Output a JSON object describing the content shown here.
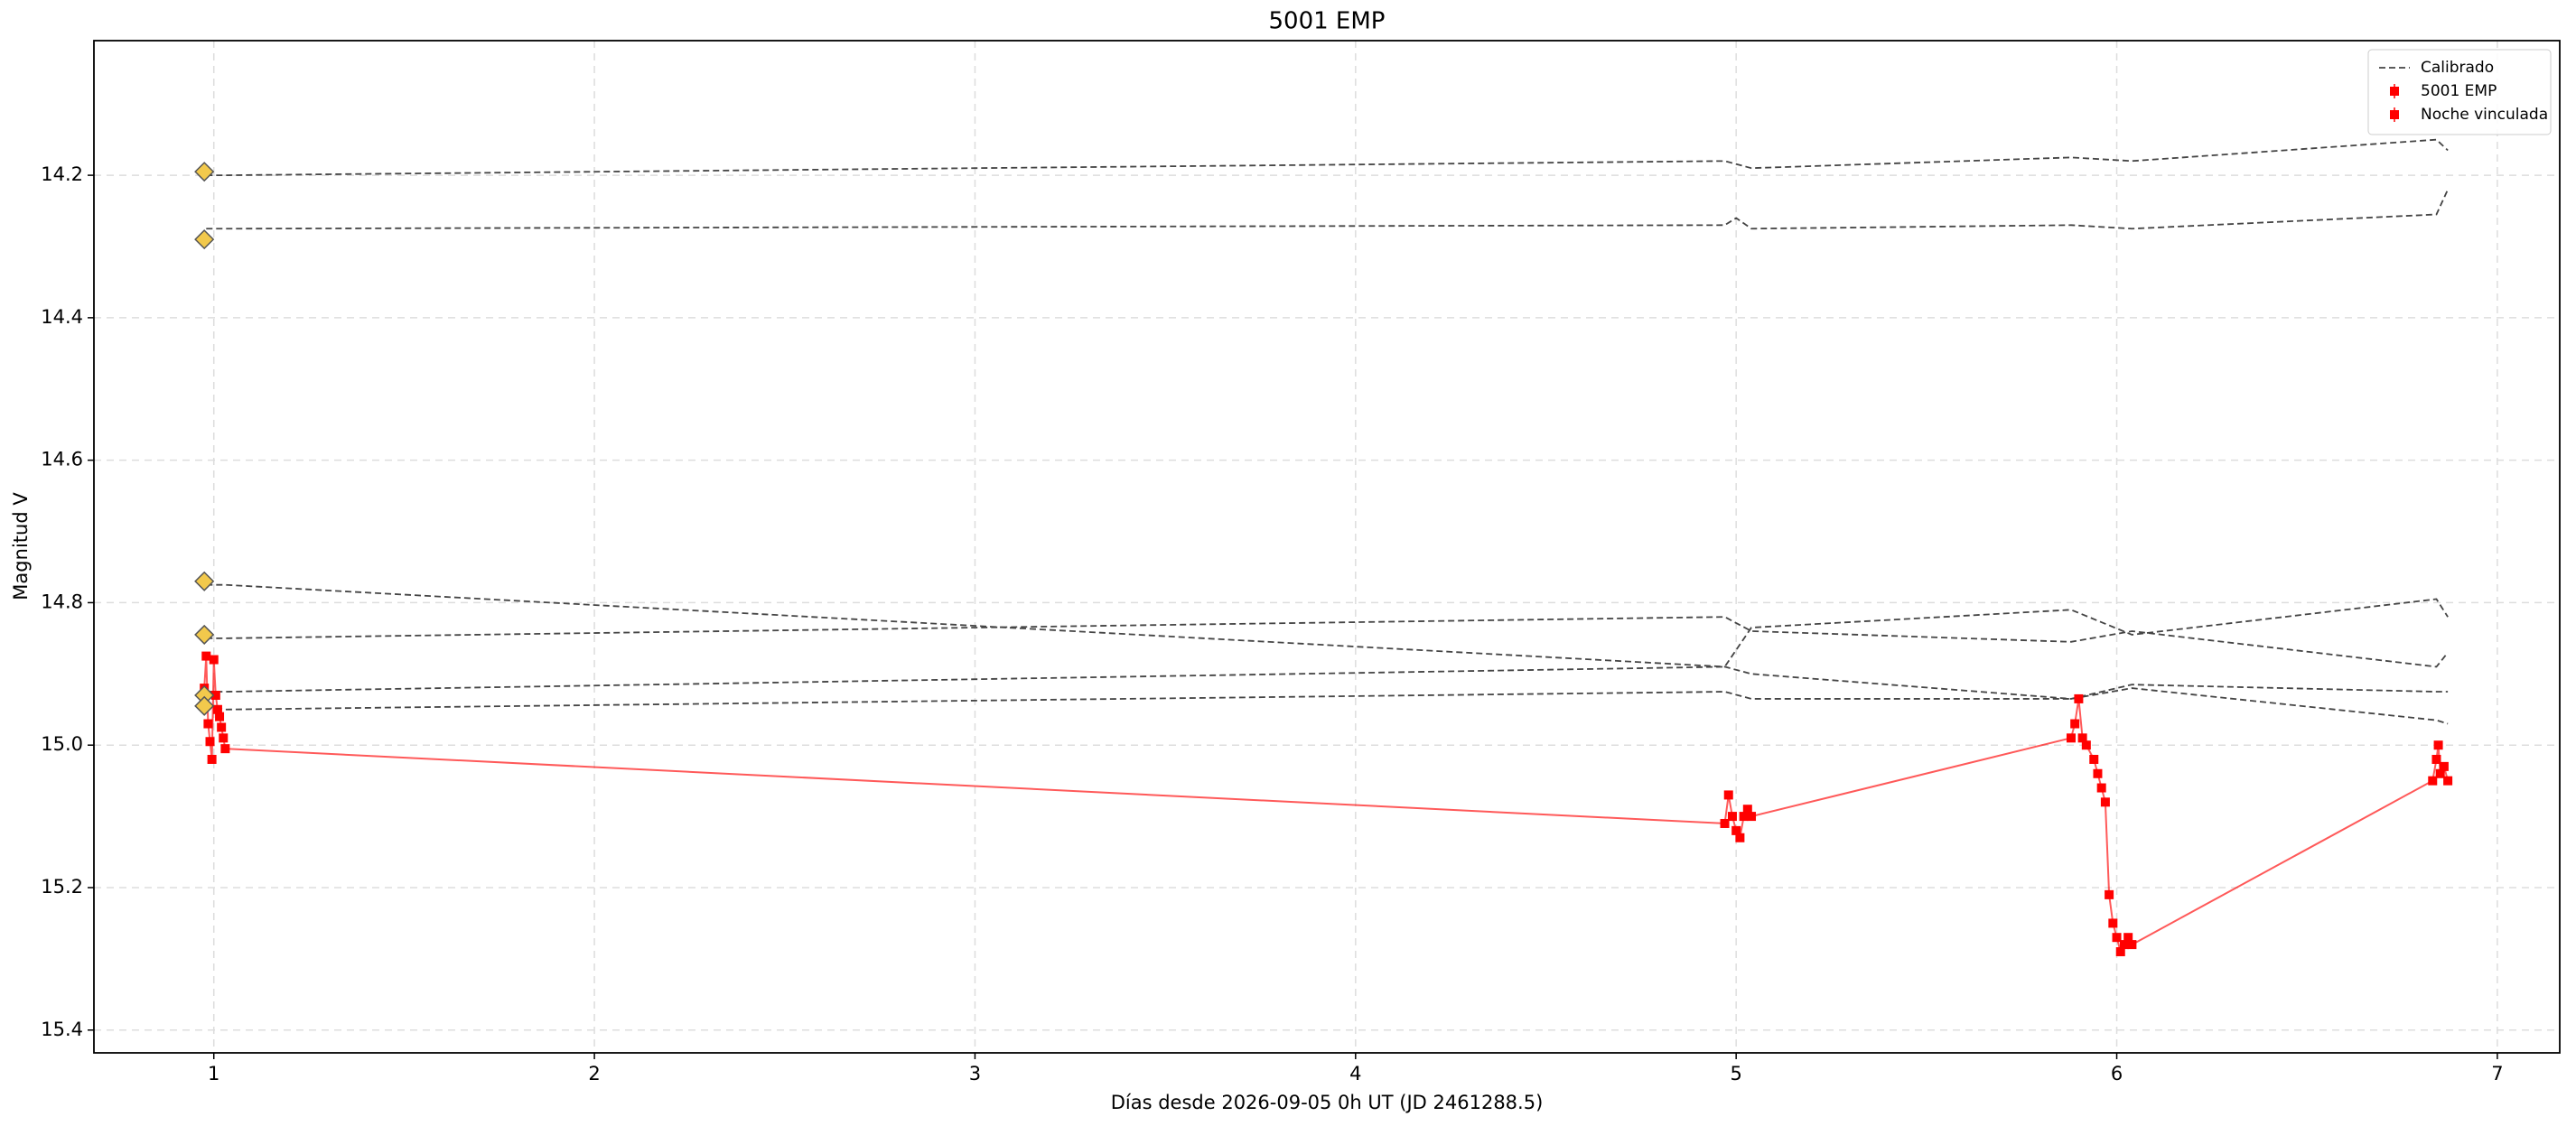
{
  "chart_data": {
    "type": "line",
    "title": "5001 EMP",
    "x_label": "Días desde 2026-09-05 0h UT (JD 2461288.5)",
    "y_label": "Magnitud V",
    "xlim": [
      0.685,
      7.164
    ],
    "ylim": [
      15.432,
      14.011
    ],
    "xticks": [
      1,
      2,
      3,
      4,
      5,
      6,
      7
    ],
    "yticks": [
      14.2,
      14.4,
      14.6,
      14.8,
      {
        "value": 15,
        "label": "15.0"
      },
      15.2,
      15.4
    ],
    "grid": true,
    "legend": "upper right",
    "connect_points": true,
    "series": [
      {
        "name": "Calibrado",
        "color": "#444444",
        "style": "dashed",
        "lines": [
          {
            "x": [
              0.98,
              1.03,
              4.97,
              5.04,
              5.88,
              6.04,
              6.84,
              6.87
            ],
            "values": [
              14.2,
              14.2,
              14.18,
              14.19,
              14.175,
              14.18,
              14.15,
              14.165
            ]
          },
          {
            "x": [
              0.98,
              1.03,
              4.97,
              5.0,
              5.04,
              5.88,
              6.04,
              6.84,
              6.87
            ],
            "values": [
              14.275,
              14.275,
              14.27,
              14.26,
              14.275,
              14.27,
              14.275,
              14.255,
              14.22
            ]
          },
          {
            "x": [
              0.98,
              1.03,
              4.97,
              5.04,
              5.88,
              6.04,
              6.84,
              6.87
            ],
            "values": [
              14.775,
              14.775,
              14.89,
              14.9,
              14.935,
              14.915,
              14.925,
              14.925
            ]
          },
          {
            "x": [
              0.98,
              1.03,
              4.97,
              5.04,
              5.88,
              6.04,
              6.84,
              6.87
            ],
            "values": [
              14.85,
              14.85,
              14.82,
              14.84,
              14.855,
              14.84,
              14.89,
              14.87
            ]
          },
          {
            "x": [
              0.98,
              1.03,
              4.97,
              5.04,
              5.88,
              6.04,
              6.84,
              6.87
            ],
            "values": [
              14.925,
              14.925,
              14.89,
              14.835,
              14.81,
              14.845,
              14.795,
              14.82
            ]
          },
          {
            "x": [
              0.98,
              1.03,
              4.97,
              5.04,
              5.88,
              6.04,
              6.84,
              6.87
            ],
            "values": [
              14.945,
              14.95,
              14.925,
              14.935,
              14.935,
              14.92,
              14.965,
              14.97
            ]
          }
        ]
      },
      {
        "name": "5001 EMP",
        "color": "#ff0000",
        "x": [
          0.975,
          0.98,
          0.985,
          0.99,
          0.995,
          1.0,
          1.005,
          1.01,
          1.015,
          1.02,
          1.025,
          1.03
        ],
        "values": [
          14.92,
          14.875,
          14.97,
          14.995,
          15.02,
          14.88,
          14.93,
          14.95,
          14.96,
          14.975,
          14.99,
          15.005
        ]
      },
      {
        "name": "Noche vinculada",
        "color": "#ff0000",
        "x": [
          4.97,
          4.98,
          4.99,
          5.0,
          5.01,
          5.02,
          5.03,
          5.04,
          5.88,
          5.89,
          5.9,
          5.91,
          5.92,
          5.94,
          5.95,
          5.96,
          5.97,
          5.98,
          5.99,
          6.0,
          6.01,
          6.02,
          6.03,
          6.04,
          6.83,
          6.84,
          6.845,
          6.85,
          6.86,
          6.87
        ],
        "values": [
          15.11,
          15.07,
          15.1,
          15.12,
          15.13,
          15.1,
          15.09,
          15.1,
          14.99,
          14.97,
          14.935,
          14.99,
          15.0,
          15.02,
          15.04,
          15.06,
          15.08,
          15.21,
          15.25,
          15.27,
          15.29,
          15.28,
          15.27,
          15.28,
          15.05,
          15.02,
          15.0,
          15.04,
          15.03,
          15.05
        ]
      }
    ],
    "reference": {
      "color": "#f2c94c",
      "x": [
        0.975,
        0.975,
        0.975,
        0.975,
        0.975,
        0.975
      ],
      "values": [
        14.195,
        14.29,
        14.77,
        14.845,
        14.93,
        14.945
      ]
    }
  }
}
